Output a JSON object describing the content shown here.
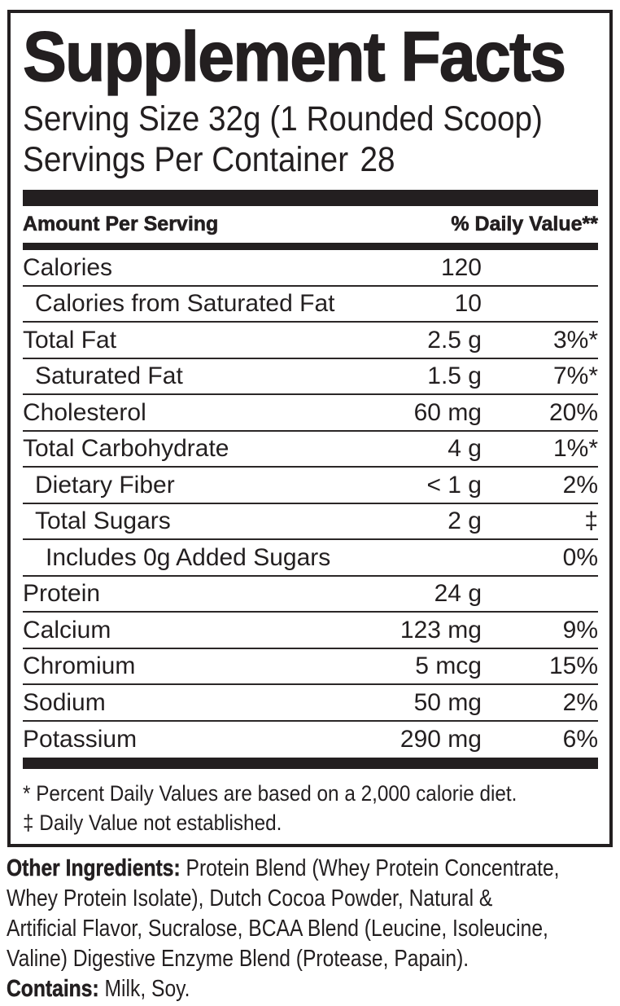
{
  "colors": {
    "ink": "#231f20",
    "background": "#ffffff"
  },
  "header": {
    "title": "Supplement Facts",
    "serving_size": "Serving Size 32g (1 Rounded Scoop)",
    "servings_per_container_label": "Servings Per Container",
    "servings_per_container_value": "28"
  },
  "table": {
    "amount_header": "Amount Per Serving",
    "dv_header": "% Daily Value**",
    "rows": [
      {
        "label": "Calories",
        "amount": "120",
        "dv": ""
      },
      {
        "label": "Calories from Saturated Fat",
        "amount": "10",
        "dv": ""
      },
      {
        "label": "Total Fat",
        "amount": "2.5 g",
        "dv": "3%*"
      },
      {
        "label": "Saturated Fat",
        "amount": "1.5 g",
        "dv": "7%*"
      },
      {
        "label": "Cholesterol",
        "amount": "60 mg",
        "dv": "20%"
      },
      {
        "label": "Total Carbohydrate",
        "amount": "4 g",
        "dv": "1%*"
      },
      {
        "label": "Dietary Fiber",
        "amount": "< 1 g",
        "dv": "2%"
      },
      {
        "label": "Total Sugars",
        "amount": "2 g",
        "dv": "‡"
      },
      {
        "label": "Includes 0g Added Sugars",
        "amount": "",
        "dv": "0%"
      },
      {
        "label": "Protein",
        "amount": "24 g",
        "dv": ""
      },
      {
        "label": "Calcium",
        "amount": "123 mg",
        "dv": "9%"
      },
      {
        "label": "Chromium",
        "amount": "5 mcg",
        "dv": "15%"
      },
      {
        "label": "Sodium",
        "amount": "50 mg",
        "dv": "2%"
      },
      {
        "label": "Potassium",
        "amount": "290 mg",
        "dv": "6%"
      }
    ]
  },
  "footnotes": {
    "dv_note": "* Percent Daily Values are based on a 2,000 calorie diet.",
    "dagger_note": "‡ Daily Value not established."
  },
  "other_ingredients": {
    "label": "Other Ingredients:",
    "line1_rest": " Protein Blend (Whey Protein Concentrate,",
    "line2": "Whey Protein Isolate), Dutch Cocoa Powder, Natural &",
    "line3": "Artificial Flavor, Sucralose, BCAA Blend (Leucine, Isoleucine,",
    "line4": "Valine) Digestive Enzyme Blend (Protease, Papain)."
  },
  "contains": {
    "label": "Contains:",
    "text": " Milk, Soy."
  }
}
